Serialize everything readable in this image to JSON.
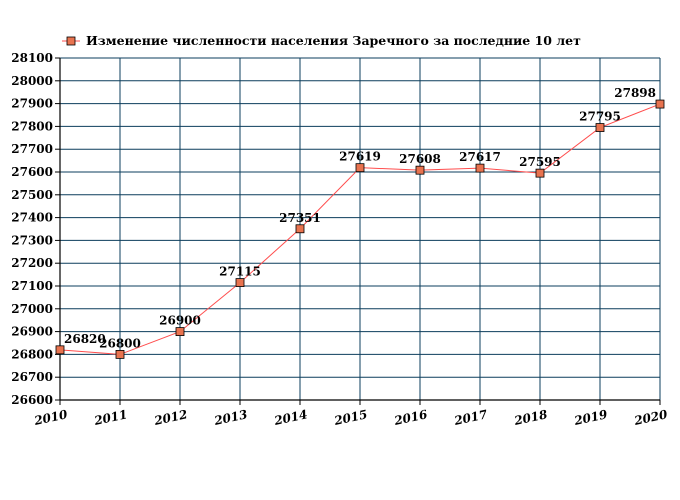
{
  "chart_data": {
    "type": "line",
    "title": "",
    "xlabel": "",
    "ylabel": "",
    "categories": [
      "2010",
      "2011",
      "2012",
      "2013",
      "2014",
      "2015",
      "2016",
      "2017",
      "2018",
      "2019",
      "2020"
    ],
    "series": [
      {
        "name": "Изменение численности населения Заречного за последние 10 лет",
        "values": [
          26820,
          26800,
          26900,
          27115,
          27351,
          27619,
          27608,
          27617,
          27595,
          27795,
          27898
        ],
        "data_labels": [
          "26820",
          "26800",
          "26900",
          "27115",
          "27351",
          "27619",
          "27608",
          "27617",
          "27595",
          "27795",
          "27898"
        ]
      }
    ],
    "ylim": [
      26600,
      28100
    ],
    "yticks": [
      "26600",
      "26700",
      "26800",
      "26900",
      "27000",
      "27100",
      "27200",
      "27300",
      "27400",
      "27500",
      "27600",
      "27700",
      "27800",
      "27900",
      "28000",
      "28100"
    ],
    "grid": true,
    "legend_position": "top-left",
    "colors": {
      "line": "#ff4d4d",
      "marker_fill": "#e8734f",
      "marker_stroke": "#000000",
      "grid": "#0b3d5c",
      "axis": "#000000"
    }
  }
}
